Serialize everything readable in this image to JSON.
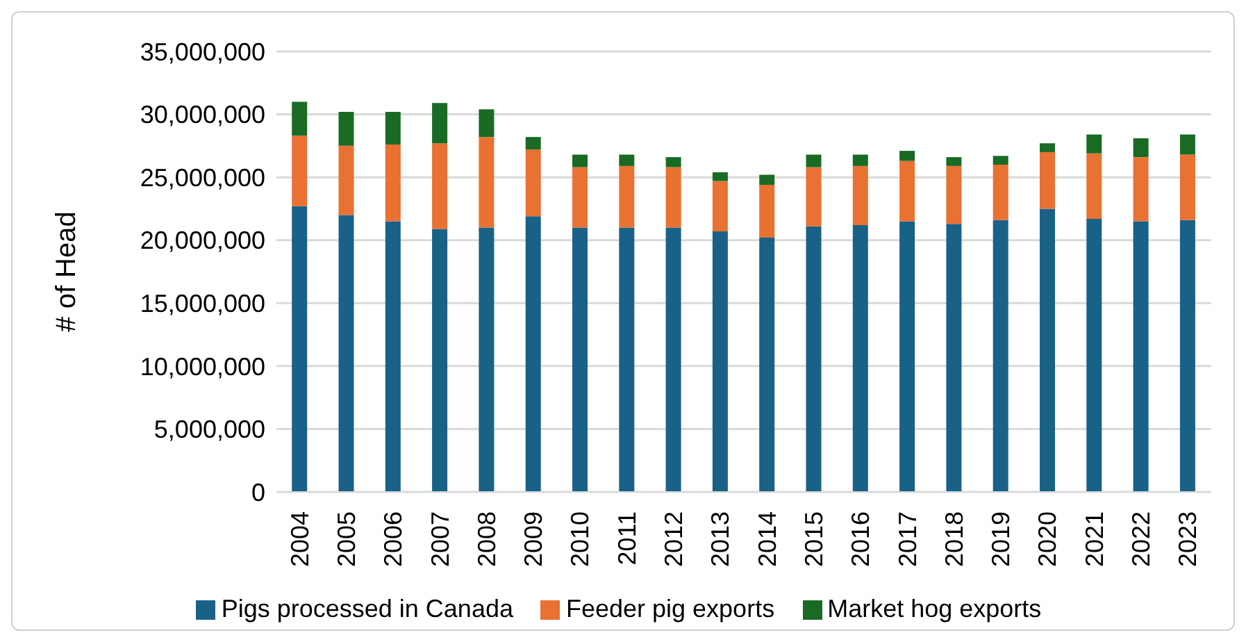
{
  "chart_data": {
    "type": "bar",
    "stacked": true,
    "ylabel": "# of Head",
    "categories": [
      "2004",
      "2005",
      "2006",
      "2007",
      "2008",
      "2009",
      "2010",
      "2011",
      "2012",
      "2013",
      "2014",
      "2015",
      "2016",
      "2017",
      "2018",
      "2019",
      "2020",
      "2021",
      "2022",
      "2023"
    ],
    "series": [
      {
        "name": "Pigs processed in Canada",
        "color": "#196187",
        "values": [
          22700000,
          22000000,
          21500000,
          20900000,
          21000000,
          21900000,
          21000000,
          21000000,
          21000000,
          20700000,
          20200000,
          21100000,
          21200000,
          21500000,
          21300000,
          21600000,
          22500000,
          21700000,
          21500000,
          21600000
        ]
      },
      {
        "name": "Feeder pig exports",
        "color": "#e97132",
        "values": [
          5600000,
          5500000,
          6100000,
          6800000,
          7200000,
          5300000,
          4800000,
          4900000,
          4800000,
          4000000,
          4200000,
          4700000,
          4700000,
          4800000,
          4600000,
          4400000,
          4500000,
          5200000,
          5100000,
          5200000
        ]
      },
      {
        "name": "Market hog exports",
        "color": "#196b24",
        "values": [
          2700000,
          2700000,
          2600000,
          3200000,
          2200000,
          1000000,
          1000000,
          900000,
          800000,
          700000,
          800000,
          1000000,
          900000,
          800000,
          700000,
          700000,
          700000,
          1500000,
          1500000,
          1600000
        ]
      }
    ],
    "ylim": [
      0,
      35000000
    ],
    "yticks": [
      0,
      {
        "value": 5000000,
        "label": "5,000,000"
      },
      {
        "value": 10000000,
        "label": "10,000,000"
      },
      {
        "value": 15000000,
        "label": "15,000,000"
      },
      {
        "value": 20000000,
        "label": "20,000,000"
      },
      {
        "value": 25000000,
        "label": "25,000,000"
      },
      {
        "value": 30000000,
        "label": "30,000,000"
      },
      {
        "value": 35000000,
        "label": "35,000,000"
      }
    ],
    "grid": "y",
    "legend": "bottom"
  }
}
